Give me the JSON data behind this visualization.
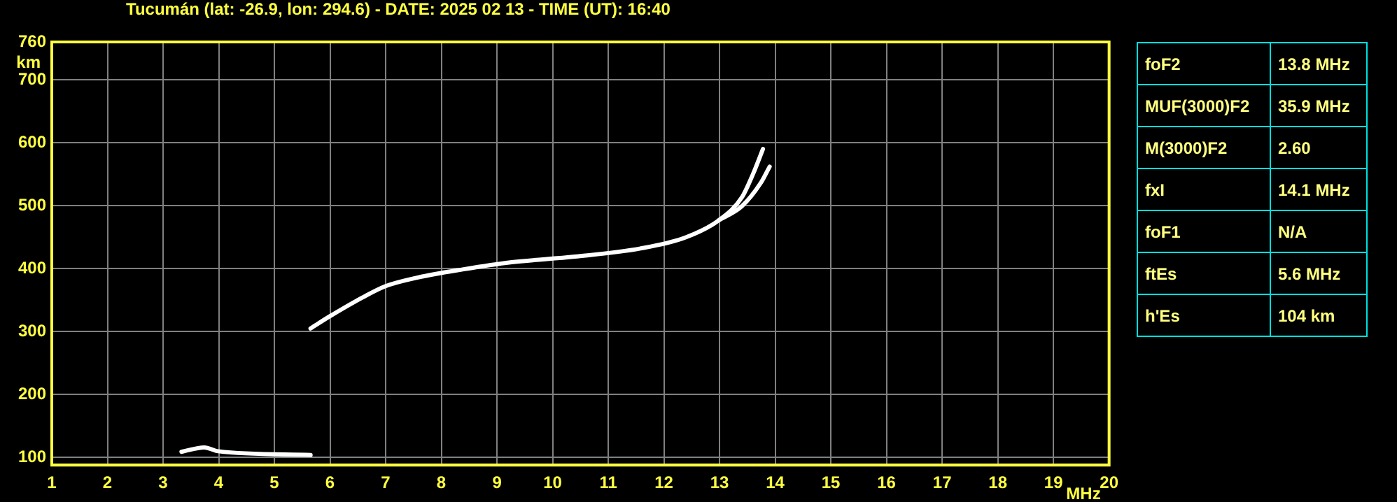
{
  "chart_data": {
    "type": "line",
    "title": "Tucumán (lat: -26.9, lon: 294.6) - DATE: 2025 02 13 - TIME (UT): 16:40",
    "xlabel": "MHz",
    "ylabel": "km",
    "xlim": [
      1,
      20
    ],
    "xticks": [
      1,
      2,
      3,
      4,
      5,
      6,
      7,
      8,
      9,
      10,
      11,
      12,
      13,
      14,
      15,
      16,
      17,
      18,
      19,
      20
    ],
    "ylim": [
      88,
      760
    ],
    "yticks": [
      100,
      200,
      300,
      400,
      500,
      600,
      700,
      760
    ],
    "grid": true,
    "legend": false,
    "marker": "none",
    "line_style": "solid",
    "series": [
      {
        "color": "#ffffff",
        "x": [
          5.65,
          5.99,
          6.58,
          6.99,
          7.58,
          8.4,
          9.24,
          10.4,
          11.58,
          12.4,
          12.99,
          13.4,
          13.6,
          13.78
        ],
        "values": [
          305,
          324,
          354,
          372,
          386,
          399,
          410,
          419,
          432,
          450,
          477,
          513,
          550,
          590
        ]
      },
      {
        "color": "#ffffff",
        "x": [
          12.99,
          13.4,
          13.74,
          13.9
        ],
        "values": [
          477,
          499,
          536,
          562
        ]
      },
      {
        "color": "#ffffff",
        "x": [
          3.33,
          3.74,
          3.99,
          5.65
        ],
        "values": [
          109,
          116,
          110,
          104
        ]
      }
    ],
    "annotations": [
      "foF2",
      "13.8 MHz",
      "MUF(3000)F2",
      "35.9 MHz",
      "M(3000)F2",
      "2.60",
      "fxI",
      "14.1 MHz",
      "foF1",
      "N/A",
      "ftEs",
      "5.6 MHz",
      "h'Es",
      "104 km"
    ]
  }
}
